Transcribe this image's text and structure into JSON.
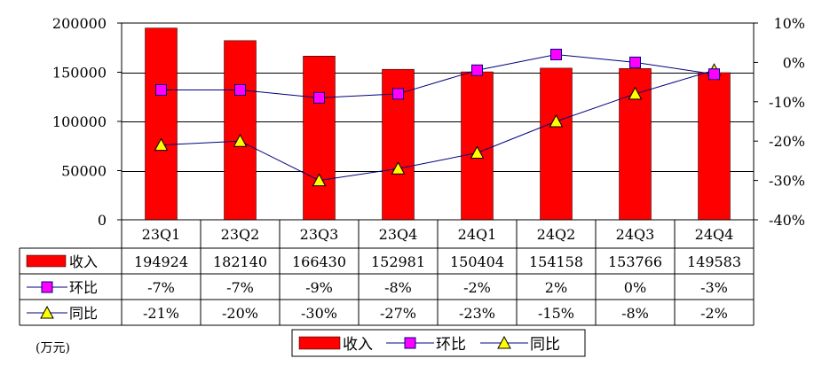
{
  "chart_data": {
    "type": "bar",
    "categories": [
      "23Q1",
      "23Q2",
      "23Q3",
      "23Q4",
      "24Q1",
      "24Q2",
      "24Q3",
      "24Q4"
    ],
    "series": [
      {
        "name": "收入",
        "kind": "bar",
        "axis": "left",
        "values": [
          194924,
          182140,
          166430,
          152981,
          150404,
          154158,
          153766,
          149583
        ],
        "labels": [
          "194924",
          "182140",
          "166430",
          "152981",
          "150404",
          "154158",
          "153766",
          "149583"
        ]
      },
      {
        "name": "环比",
        "kind": "line",
        "axis": "right",
        "values": [
          -7,
          -7,
          -9,
          -8,
          -2,
          2,
          0,
          -3
        ],
        "labels": [
          "-7%",
          "-7%",
          "-9%",
          "-8%",
          "-2%",
          "2%",
          "0%",
          "-3%"
        ]
      },
      {
        "name": "同比",
        "kind": "line",
        "axis": "right",
        "values": [
          -21,
          -20,
          -30,
          -27,
          -23,
          -15,
          -8,
          -2
        ],
        "labels": [
          "-21%",
          "-20%",
          "-30%",
          "-27%",
          "-23%",
          "-15%",
          "-8%",
          "-2%"
        ]
      }
    ],
    "y_left": {
      "ylim": [
        0,
        200000
      ],
      "ticks": [
        "0",
        "50000",
        "100000",
        "150000",
        "200000"
      ]
    },
    "y_right": {
      "ylim": [
        -40,
        10
      ],
      "ticks": [
        "-40%",
        "-30%",
        "-20%",
        "-10%",
        "0%",
        "10%"
      ]
    },
    "unit_label": "(万元)",
    "legend": [
      "收入",
      "环比",
      "同比"
    ],
    "legend_position": "bottom-center",
    "grid": true,
    "colors": {
      "bar": "#ff0000",
      "qoq_line": "#000080",
      "qoq_marker": "#ff00ff",
      "yoy_line": "#000080",
      "yoy_marker": "#ffff00"
    }
  }
}
